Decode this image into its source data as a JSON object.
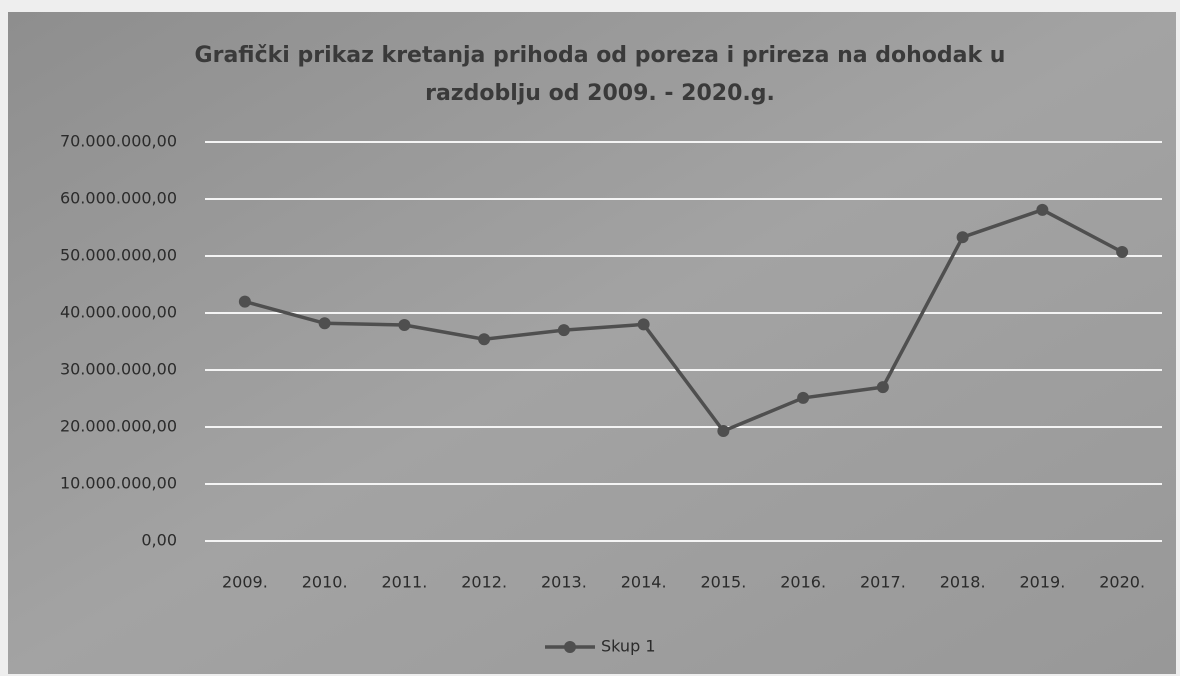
{
  "chart_data": {
    "type": "line",
    "title": [
      "Grafički prikaz kretanja prihoda od poreza i prireza na dohodak u",
      "razdoblju od 2009. - 2020.g."
    ],
    "categories": [
      "2009.",
      "2010.",
      "2011.",
      "2012.",
      "2013.",
      "2014.",
      "2015.",
      "2016.",
      "2017.",
      "2018.",
      "2019.",
      "2020."
    ],
    "series": [
      {
        "name": "Skup 1",
        "color": "#4f4f4f",
        "values": [
          42000000,
          38200000,
          37900000,
          35400000,
          37000000,
          38000000,
          19300000,
          25100000,
          27000000,
          53300000,
          58100000,
          50700000
        ]
      }
    ],
    "ylim": [
      0,
      70000000
    ],
    "yticks": [
      {
        "value": 0,
        "label": "0,00"
      },
      {
        "value": 10000000,
        "label": "10.000.000,00"
      },
      {
        "value": 20000000,
        "label": "20.000.000,00"
      },
      {
        "value": 30000000,
        "label": "30.000.000,00"
      },
      {
        "value": 40000000,
        "label": "40.000.000,00"
      },
      {
        "value": 50000000,
        "label": "50.000.000,00"
      },
      {
        "value": 60000000,
        "label": "60.000.000,00"
      },
      {
        "value": 70000000,
        "label": "70.000.000,00"
      }
    ],
    "grid": true,
    "legend": "bottom"
  }
}
